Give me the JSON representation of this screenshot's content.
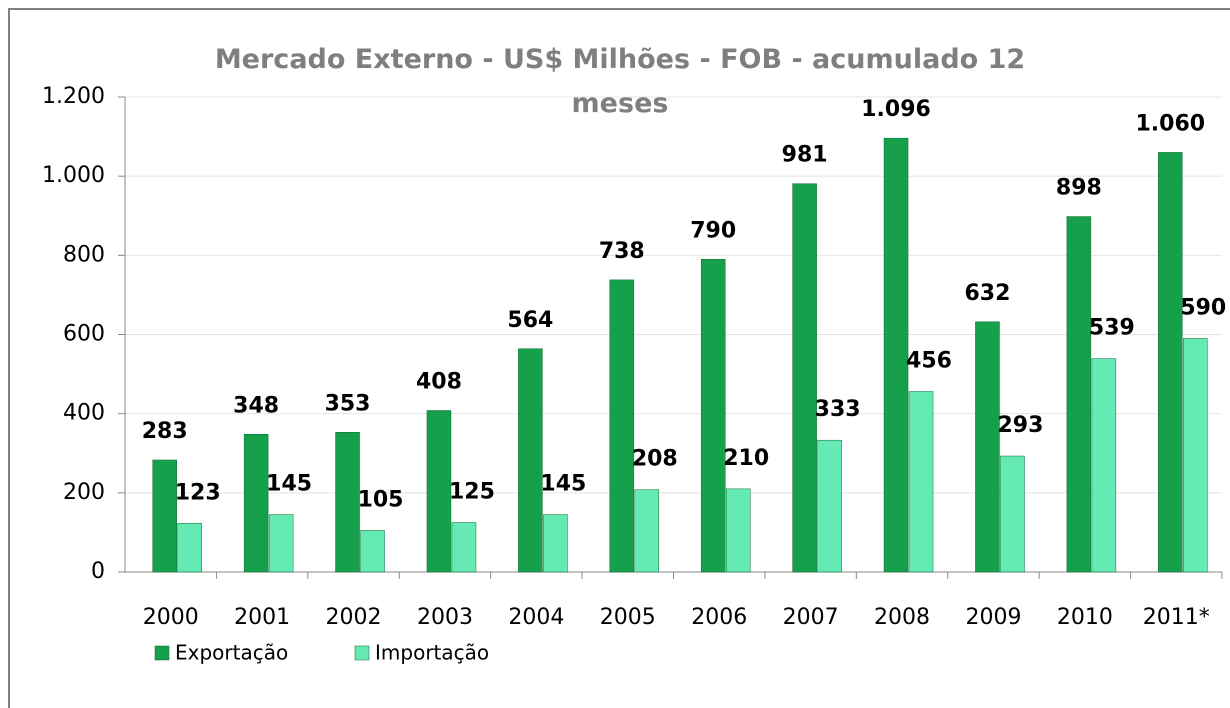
{
  "chart_data": {
    "type": "bar",
    "title": "Mercado Externo - US$ Milhões - FOB - acumulado 12 meses",
    "categories": [
      "2000",
      "2001",
      "2002",
      "2003",
      "2004",
      "2005",
      "2006",
      "2007",
      "2008",
      "2009",
      "2010",
      "2011*"
    ],
    "series": [
      {
        "name": "Exportação",
        "color": "#16a04c",
        "values": [
          283,
          348,
          353,
          408,
          564,
          738,
          790,
          981,
          1096,
          632,
          898,
          1060
        ],
        "value_labels": [
          "283",
          "348",
          "353",
          "408",
          "564",
          "738",
          "790",
          "981",
          "1.096",
          "632",
          "898",
          "1.060"
        ]
      },
      {
        "name": "Importação",
        "color": "#66eab4",
        "values": [
          123,
          145,
          105,
          125,
          145,
          208,
          210,
          333,
          456,
          293,
          539,
          590
        ]
      }
    ],
    "ylim": [
      0,
      1200
    ],
    "yticks": [
      0,
      200,
      400,
      600,
      800,
      {
        "value": 1000,
        "label": "1.000"
      },
      {
        "value": 1200,
        "label": "1.200"
      }
    ],
    "grid": true
  }
}
